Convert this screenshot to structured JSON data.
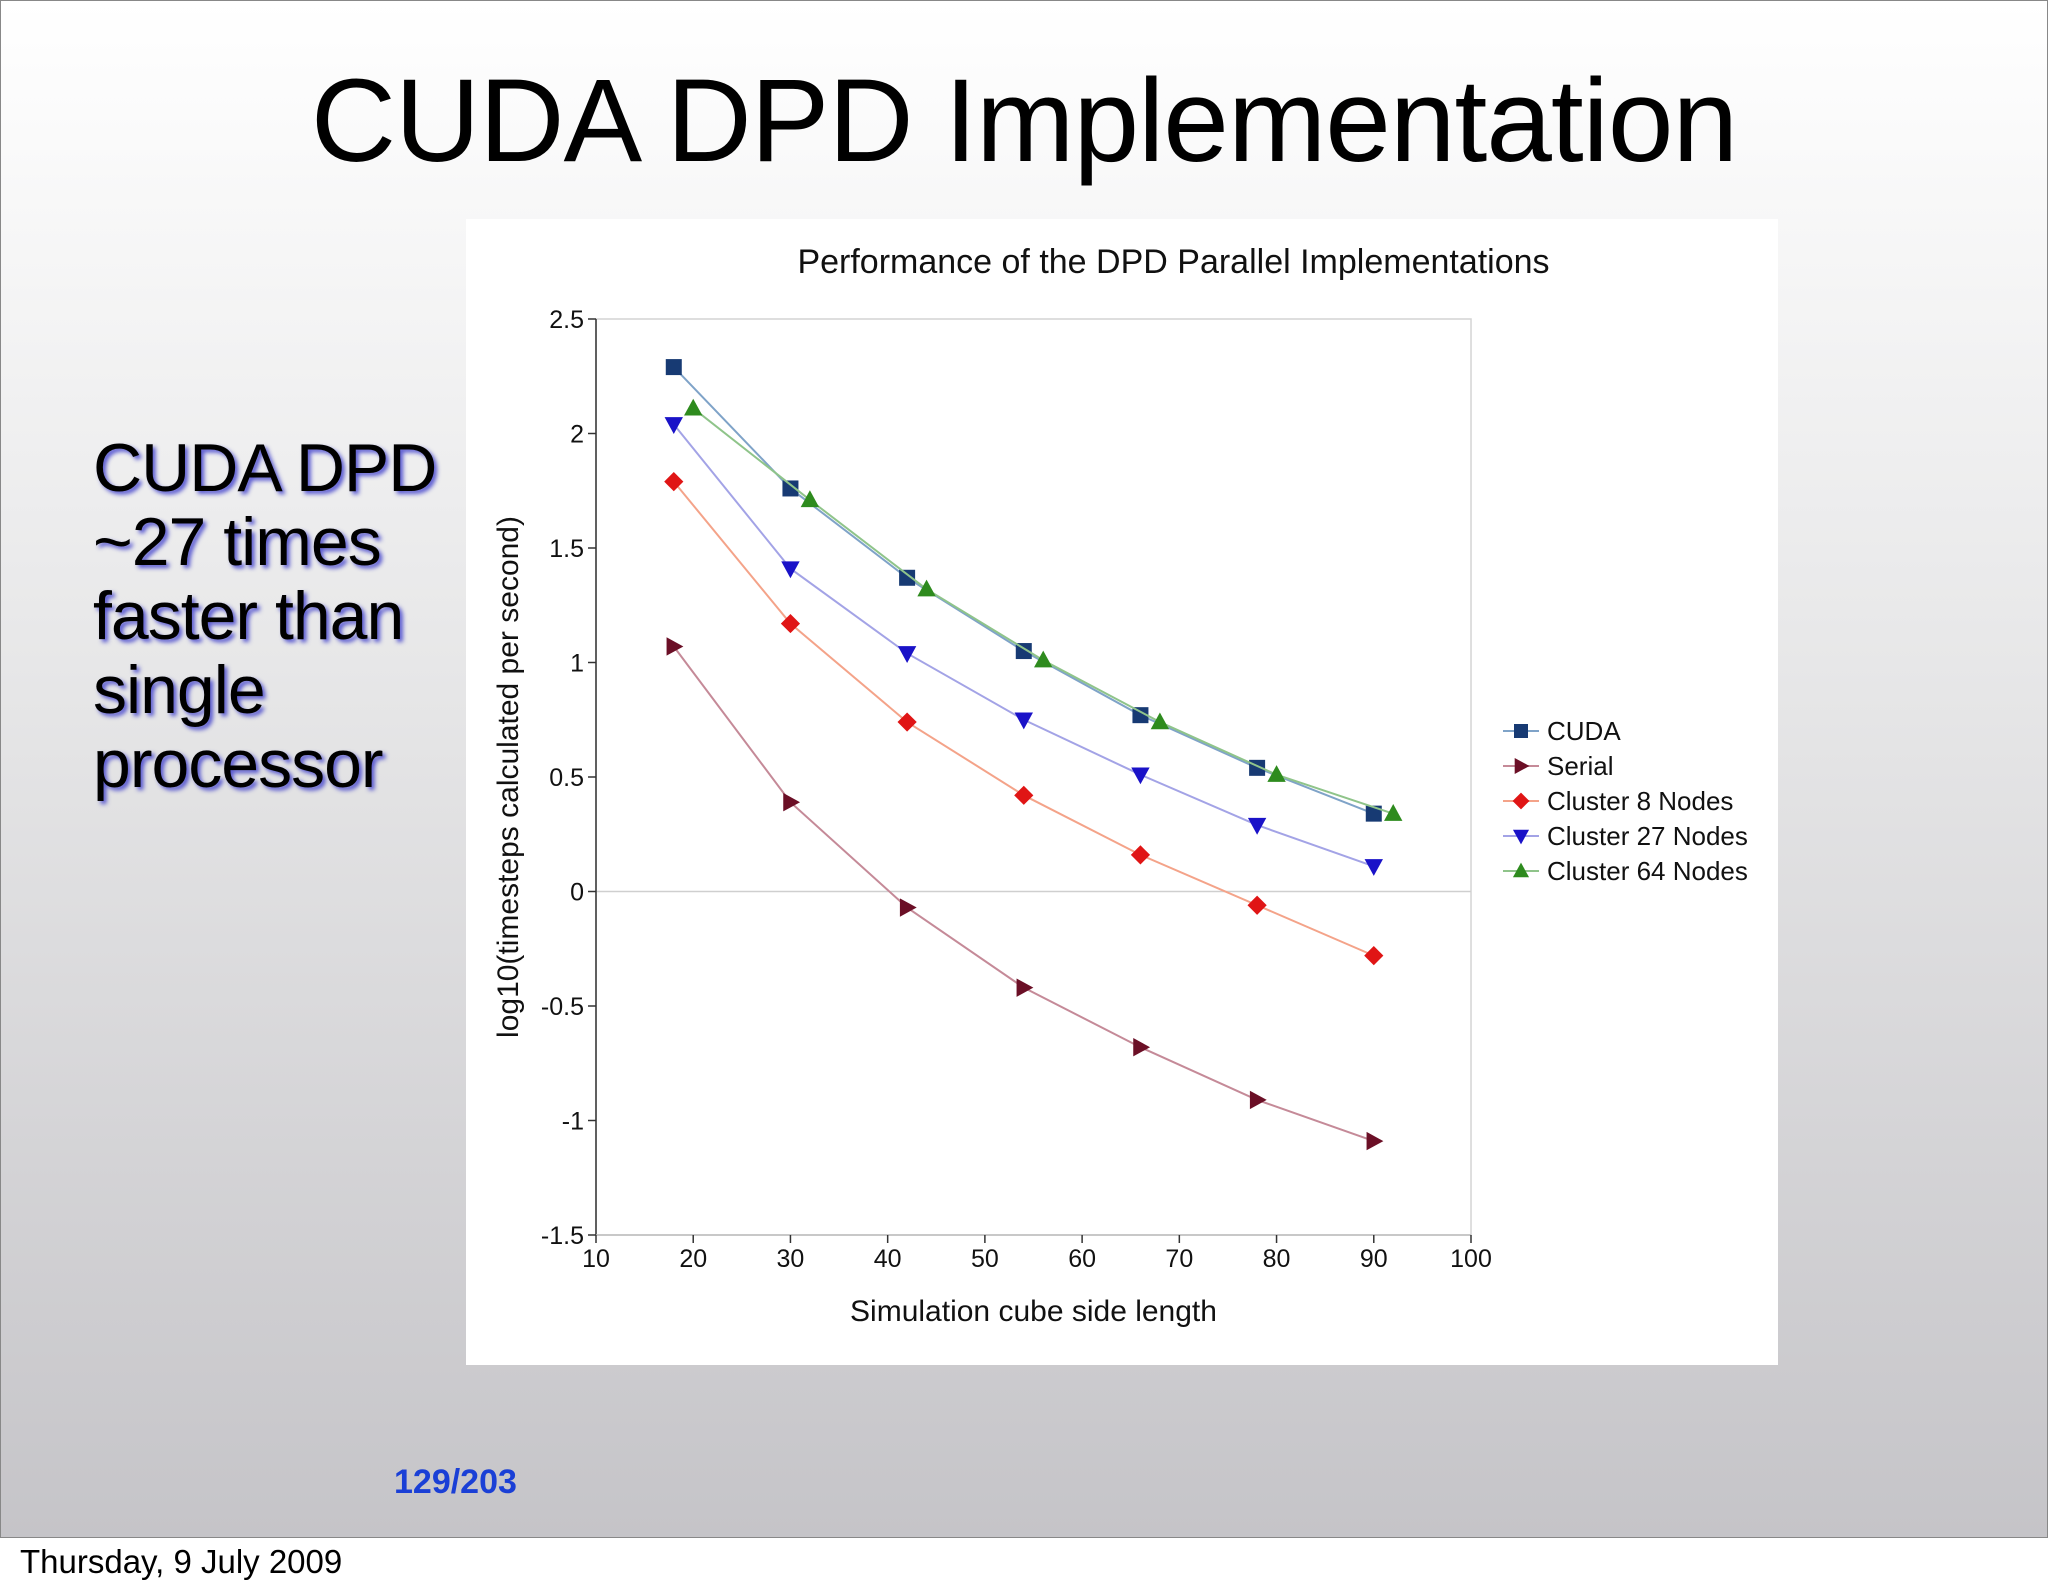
{
  "slide": {
    "title": "CUDA DPD Implementation",
    "side_note": [
      "CUDA DPD",
      "~27 times",
      "faster than",
      "single",
      "processor"
    ],
    "page_number": "129/203",
    "footer_date": "Thursday, 9 July 2009"
  },
  "colors": {
    "page_number": "#1a3fd6",
    "side_note_shadow": "#2828c8"
  },
  "chart_data": {
    "type": "line",
    "title": "Performance of the DPD Parallel Implementations",
    "xlabel": "Simulation cube side length",
    "ylabel": "log10(timesteps calculated per second)",
    "xlim": [
      10,
      100
    ],
    "ylim": [
      -1.5,
      2.5
    ],
    "xticks": [
      10,
      20,
      30,
      40,
      50,
      60,
      70,
      80,
      90,
      100
    ],
    "yticks": [
      -1.5,
      -1,
      -0.5,
      0,
      0.5,
      1,
      1.5,
      2,
      2.5
    ],
    "ytick_labels": [
      "-1.5",
      "-1",
      "-0.5",
      "0",
      "0.5",
      "1",
      "1.5",
      "2",
      "2.5"
    ],
    "legend_position": "right",
    "grid": "zero line only",
    "series": [
      {
        "name": "CUDA",
        "marker": "square",
        "color": "#173a73",
        "line_color": "#7fa3c8",
        "x": [
          18,
          30,
          42,
          54,
          66,
          78,
          90
        ],
        "y": [
          2.29,
          1.76,
          1.37,
          1.05,
          0.77,
          0.54,
          0.34
        ]
      },
      {
        "name": "Serial",
        "marker": "triangle-right",
        "color": "#6b0f26",
        "line_color": "#c58a98",
        "x": [
          18,
          30,
          42,
          54,
          66,
          78,
          90
        ],
        "y": [
          1.07,
          0.39,
          -0.07,
          -0.42,
          -0.68,
          -0.91,
          -1.09
        ]
      },
      {
        "name": "Cluster 8 Nodes",
        "marker": "diamond",
        "color": "#e01515",
        "line_color": "#f4a389",
        "x": [
          18,
          30,
          42,
          54,
          66,
          78,
          90
        ],
        "y": [
          1.79,
          1.17,
          0.74,
          0.42,
          0.16,
          -0.06,
          -0.28
        ]
      },
      {
        "name": "Cluster 27 Nodes",
        "marker": "triangle-down",
        "color": "#1a12c8",
        "line_color": "#a3a3e6",
        "x": [
          18,
          30,
          42,
          54,
          66,
          78,
          90
        ],
        "y": [
          2.04,
          1.41,
          1.04,
          0.75,
          0.51,
          0.29,
          0.11
        ]
      },
      {
        "name": "Cluster 64 Nodes",
        "marker": "triangle-up",
        "color": "#2e8b1e",
        "line_color": "#8fc48a",
        "x": [
          20,
          32,
          44,
          56,
          68,
          80,
          92
        ],
        "y": [
          2.11,
          1.71,
          1.32,
          1.01,
          0.74,
          0.51,
          0.34
        ]
      }
    ]
  }
}
